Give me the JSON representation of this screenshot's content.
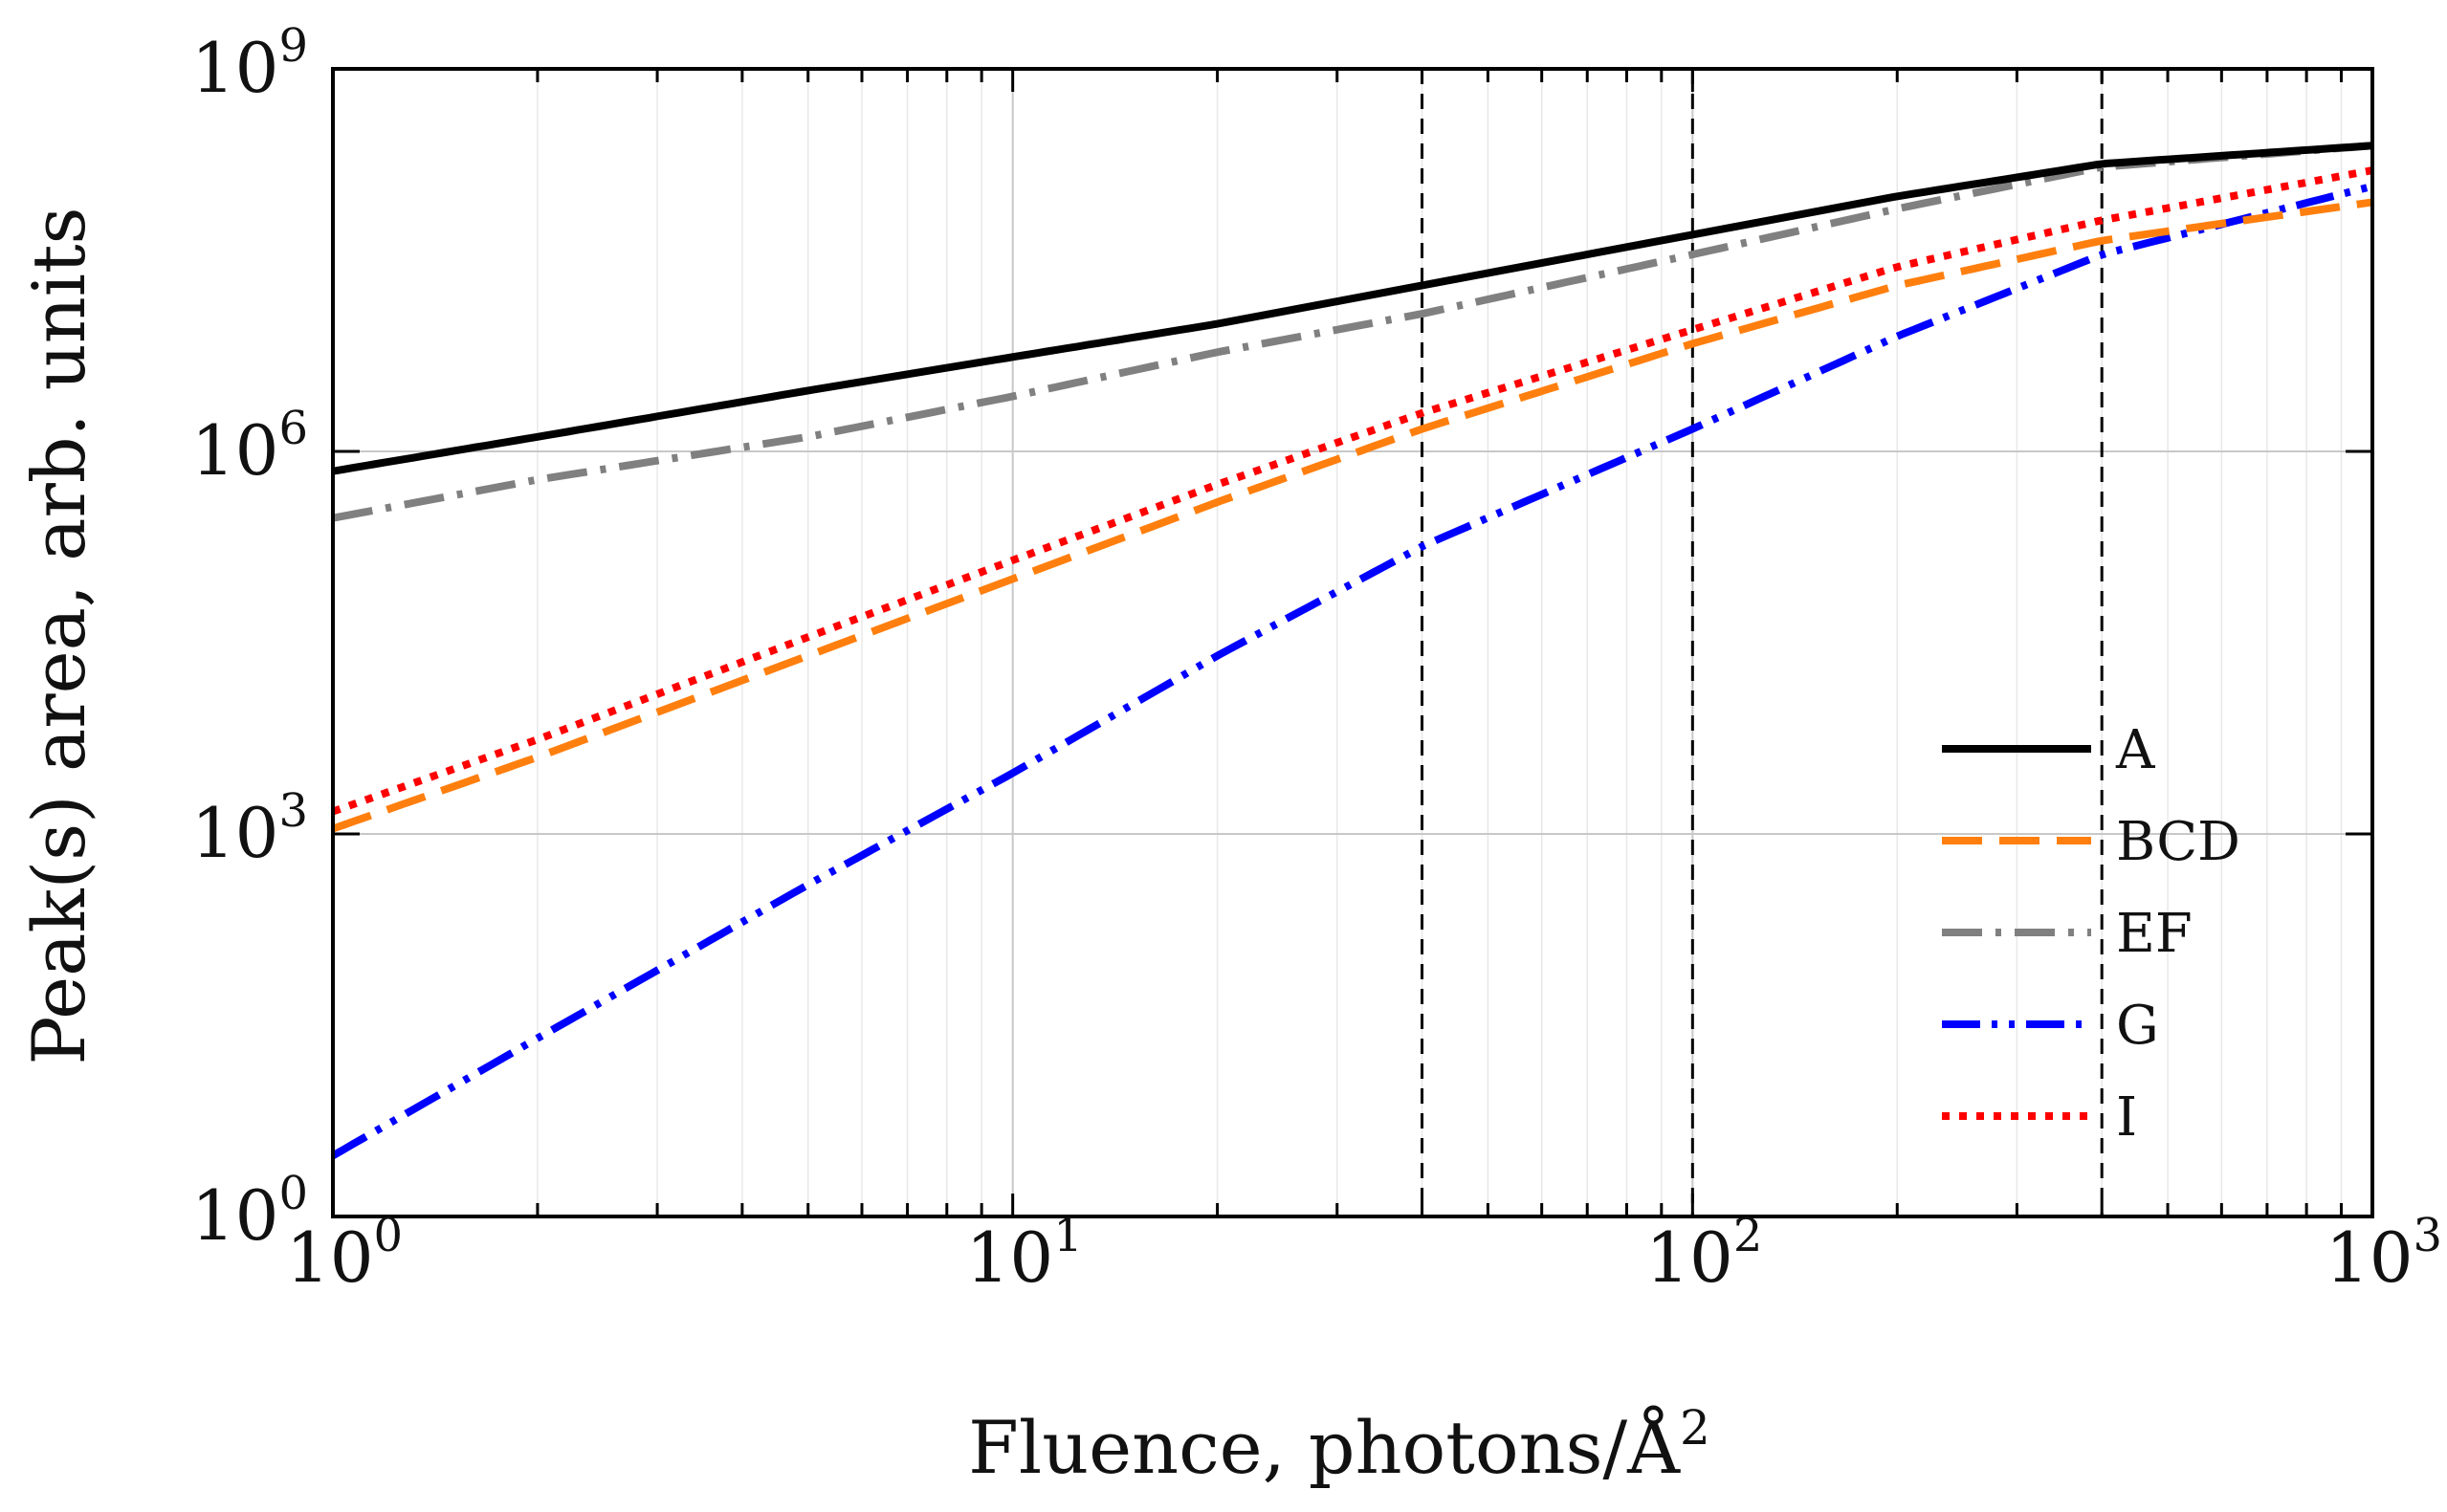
{
  "chart_data": {
    "type": "line",
    "title": "",
    "xlabel": "Fluence, photons/Å",
    "xlabel_exponent": "2",
    "ylabel": "Peak(s) area, arb. units",
    "xscale": "log",
    "yscale": "log",
    "xlim": [
      1,
      1000
    ],
    "ylim": [
      1,
      1000000000
    ],
    "grid": true,
    "x_ticks": [
      {
        "base": "10",
        "exp": "0",
        "value": 1
      },
      {
        "base": "10",
        "exp": "1",
        "value": 10
      },
      {
        "base": "10",
        "exp": "2",
        "value": 100
      },
      {
        "base": "10",
        "exp": "3",
        "value": 1000
      }
    ],
    "y_ticks": [
      {
        "base": "10",
        "exp": "0",
        "value": 1
      },
      {
        "base": "10",
        "exp": "3",
        "value": 1000
      },
      {
        "base": "10",
        "exp": "6",
        "value": 1000000
      },
      {
        "base": "10",
        "exp": "9",
        "value": 1000000000
      }
    ],
    "vertical_lines": [
      40,
      100,
      400
    ],
    "legend_position": "bottom-right",
    "x": [
      1,
      2,
      5,
      10,
      20,
      40,
      100,
      200,
      400,
      1000
    ],
    "series": [
      {
        "name": "A",
        "color": "#000000",
        "style": "solid",
        "values": [
          700000,
          1300000,
          3000000,
          5500000,
          10000000,
          20000000,
          50000000,
          100000000,
          180000000,
          250000000
        ]
      },
      {
        "name": "BCD",
        "color": "#ff7f0e",
        "style": "dashed",
        "values": [
          1100,
          4000,
          25000,
          100000,
          400000,
          1500000,
          7000000,
          20000000,
          45000000,
          90000000
        ]
      },
      {
        "name": "EF",
        "color": "#808080",
        "style": "dashdot",
        "values": [
          300000,
          600000,
          1300000,
          2700000,
          6000000,
          12000000,
          35000000,
          80000000,
          170000000,
          250000000
        ]
      },
      {
        "name": "G",
        "color": "#0000ff",
        "style": "dashdotdot",
        "values": [
          3,
          25,
          400,
          3000,
          25000,
          180000,
          1500000,
          8000000,
          35000000,
          120000000
        ]
      },
      {
        "name": "I",
        "color": "#ff0000",
        "style": "dotted",
        "values": [
          1500,
          5500,
          35000,
          140000,
          550000,
          2000000,
          9000000,
          28000000,
          65000000,
          160000000
        ]
      }
    ]
  }
}
